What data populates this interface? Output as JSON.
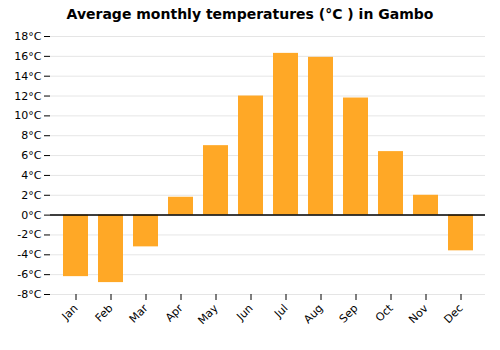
{
  "chart_data": {
    "type": "bar",
    "title": "Average monthly temperatures (°C ) in Gambo",
    "categories": [
      "Jan",
      "Feb",
      "Mar",
      "Apr",
      "May",
      "Jun",
      "Jul",
      "Aug",
      "Sep",
      "Oct",
      "Nov",
      "Dec"
    ],
    "values": [
      -6.2,
      -6.8,
      -3.2,
      1.8,
      7.0,
      12.0,
      16.3,
      15.9,
      11.8,
      6.4,
      2.0,
      -3.6
    ],
    "color": "#FFA826",
    "ylim": [
      -8,
      18
    ],
    "yticks": [
      {
        "value": -8,
        "label": "-8°C"
      },
      {
        "value": -6,
        "label": "-6°C"
      },
      {
        "value": -4,
        "label": "-4°C"
      },
      {
        "value": -2,
        "label": "-2°C"
      },
      {
        "value": 0,
        "label": "0°C"
      },
      {
        "value": 2,
        "label": "2°C"
      },
      {
        "value": 4,
        "label": "4°C"
      },
      {
        "value": 6,
        "label": "6°C"
      },
      {
        "value": 8,
        "label": "8°C"
      },
      {
        "value": 10,
        "label": "10°C"
      },
      {
        "value": 12,
        "label": "12°C"
      },
      {
        "value": 14,
        "label": "14°C"
      },
      {
        "value": 16,
        "label": "16°C"
      },
      {
        "value": 18,
        "label": "18°C"
      }
    ],
    "grid": true
  }
}
